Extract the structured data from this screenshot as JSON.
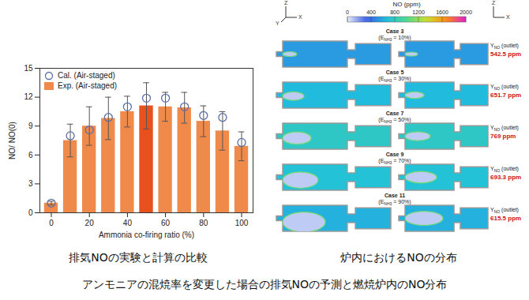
{
  "chart_data": {
    "type": "bar",
    "x_label": "Ammonia co-firing ratio (%)",
    "y_label": "NO/ NO(0)",
    "x": [
      0,
      10,
      20,
      30,
      40,
      50,
      60,
      70,
      80,
      90,
      100
    ],
    "series": [
      {
        "name": "Cal. (Air-staged)",
        "type": "scatter",
        "marker": "circle",
        "color": "#5b6fa8",
        "values": [
          1.0,
          8.0,
          8.6,
          9.9,
          11.0,
          11.9,
          11.9,
          11.0,
          10.1,
          9.9,
          7.3
        ]
      },
      {
        "name": "Exp. (Air-staged)",
        "type": "bar",
        "color": "#f08a4b",
        "colors": [
          "#f08a4b",
          "#f08a4b",
          "#f08a4b",
          "#f08a4b",
          "#f08a4b",
          "#e8501c",
          "#f08a4b",
          "#f08a4b",
          "#f08a4b",
          "#f08a4b",
          "#f08a4b"
        ],
        "values": [
          1.0,
          7.5,
          9.0,
          9.8,
          10.5,
          11.1,
          11.0,
          10.9,
          9.5,
          8.5,
          6.9
        ],
        "error": [
          0.2,
          1.7,
          2.0,
          2.2,
          1.6,
          2.4,
          1.5,
          1.6,
          1.6,
          2.0,
          1.5
        ]
      }
    ],
    "xlim": [
      -6,
      106
    ],
    "xticks": [
      0,
      20,
      40,
      60,
      80,
      100
    ],
    "ylim": [
      0,
      15
    ],
    "yticks": [
      0,
      3,
      6,
      9,
      12,
      15
    ],
    "grid": false,
    "legend": "upper left"
  },
  "contour_panel": {
    "colorbar": {
      "title": "NO (ppm)",
      "range": [
        0,
        2000
      ],
      "ticks": [
        0,
        400,
        800,
        1200,
        1600,
        2000
      ]
    },
    "axis_labels": {
      "left": [
        "Z",
        "X",
        "Y"
      ],
      "right": [
        "Z",
        "X"
      ]
    },
    "outlet_label": [
      "Y",
      "NO",
      " (outlet)"
    ],
    "cases": [
      {
        "case": "Case 3",
        "condition": [
          "(E",
          "NH3",
          " = 10%)"
        ],
        "outlet_value": 542.5,
        "outlet_text": "542.5 ppm"
      },
      {
        "case": "Case 5",
        "condition": [
          "(E",
          "NH3",
          " = 30%)"
        ],
        "outlet_value": 651.7,
        "outlet_text": "651.7 ppm"
      },
      {
        "case": "Case 7",
        "condition": [
          "(E",
          "NH3",
          " = 50%)"
        ],
        "outlet_value": 769,
        "outlet_text": "769 ppm"
      },
      {
        "case": "Case 9",
        "condition": [
          "(E",
          "NH3",
          " = 70%)"
        ],
        "outlet_value": 693.3,
        "outlet_text": "693.3 ppm"
      },
      {
        "case": "Case 11",
        "condition": [
          "(E",
          "NH3",
          " = 90%)"
        ],
        "outlet_value": 615.5,
        "outlet_text": "615.5 ppm"
      }
    ]
  },
  "captions": {
    "left": "排気NOの実験と計算の比較",
    "right": "炉内におけるNOの分布",
    "bottom": "アンモニアの混焼率を変更した場合の排気NOの予測と燃焼炉内のNO分布"
  }
}
